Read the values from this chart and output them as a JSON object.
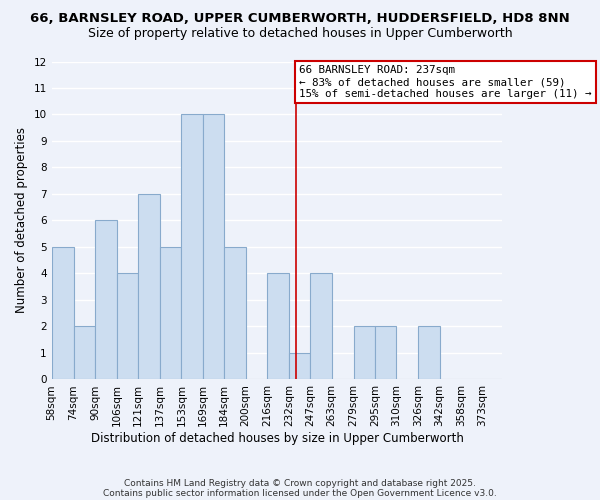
{
  "title": "66, BARNSLEY ROAD, UPPER CUMBERWORTH, HUDDERSFIELD, HD8 8NN",
  "subtitle": "Size of property relative to detached houses in Upper Cumberworth",
  "xlabel": "Distribution of detached houses by size in Upper Cumberworth",
  "ylabel": "Number of detached properties",
  "bar_color": "#ccddf0",
  "bar_edge_color": "#88aacc",
  "bin_labels": [
    "58sqm",
    "74sqm",
    "90sqm",
    "106sqm",
    "121sqm",
    "137sqm",
    "153sqm",
    "169sqm",
    "184sqm",
    "200sqm",
    "216sqm",
    "232sqm",
    "247sqm",
    "263sqm",
    "279sqm",
    "295sqm",
    "310sqm",
    "326sqm",
    "342sqm",
    "358sqm",
    "373sqm"
  ],
  "counts": [
    5,
    2,
    6,
    4,
    7,
    5,
    10,
    10,
    5,
    0,
    4,
    1,
    4,
    0,
    2,
    2,
    0,
    2,
    0,
    0,
    0
  ],
  "ylim": [
    0,
    12
  ],
  "yticks": [
    0,
    1,
    2,
    3,
    4,
    5,
    6,
    7,
    8,
    9,
    10,
    11,
    12
  ],
  "property_line_x": 237,
  "annotation_title": "66 BARNSLEY ROAD: 237sqm",
  "annotation_line1": "← 83% of detached houses are smaller (59)",
  "annotation_line2": "15% of semi-detached houses are larger (11) →",
  "annotation_box_color": "#ffffff",
  "annotation_box_edge": "#cc0000",
  "vline_color": "#cc0000",
  "footnote1": "Contains HM Land Registry data © Crown copyright and database right 2025.",
  "footnote2": "Contains public sector information licensed under the Open Government Licence v3.0.",
  "bin_edges": [
    58,
    74,
    90,
    106,
    121,
    137,
    153,
    169,
    184,
    200,
    216,
    232,
    247,
    263,
    279,
    295,
    310,
    326,
    342,
    358,
    373,
    388
  ],
  "background_color": "#eef2fa",
  "grid_color": "#ffffff",
  "title_fontsize": 9.5,
  "subtitle_fontsize": 9,
  "axis_label_fontsize": 8.5,
  "tick_fontsize": 7.5,
  "footnote_fontsize": 6.5
}
